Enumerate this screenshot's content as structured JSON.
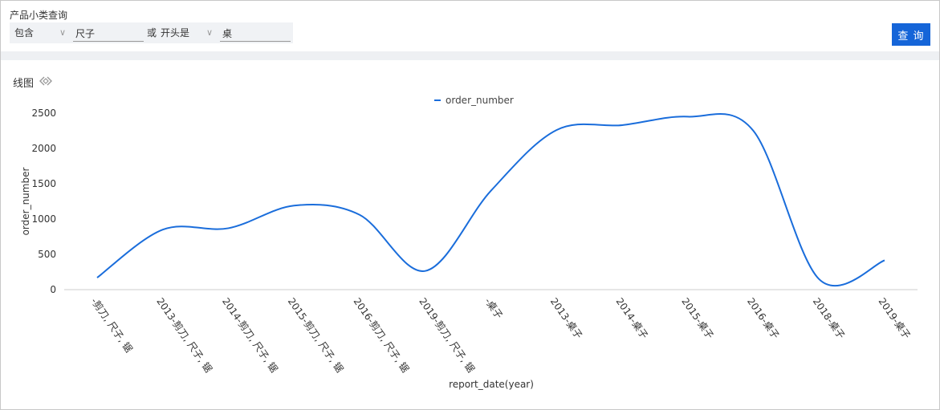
{
  "filter": {
    "label": "产品小类查询",
    "condition1": "包含",
    "value1": "尺子",
    "or_label": "或",
    "condition2": "开头是",
    "value2": "桌",
    "query_button": "查 询"
  },
  "chart_title": "线图",
  "colors": {
    "line": "#1a6ddb",
    "button": "#1565d8"
  },
  "chart_data": {
    "type": "line",
    "legend_position": "top-center",
    "xlabel": "report_date(year)",
    "ylabel": "order_number",
    "ylim": [
      0,
      2500
    ],
    "yticks": [
      0,
      500,
      1000,
      1500,
      2000,
      2500
    ],
    "categories": [
      "-剪刀, 尺子, 锯",
      "2013-剪刀, 尺子, 锯",
      "2014-剪刀, 尺子, 锯",
      "2015-剪刀, 尺子, 锯",
      "2016-剪刀, 尺子, 锯",
      "2019-剪刀, 尺子, 锯",
      "-桌子",
      "2013-桌子",
      "2014-桌子",
      "2015-桌子",
      "2016-桌子",
      "2018-桌子",
      "2019-桌子"
    ],
    "series": [
      {
        "name": "order_number",
        "values": [
          170,
          850,
          870,
          1190,
          1060,
          265,
          1400,
          2260,
          2330,
          2450,
          2250,
          150,
          415
        ]
      }
    ]
  }
}
